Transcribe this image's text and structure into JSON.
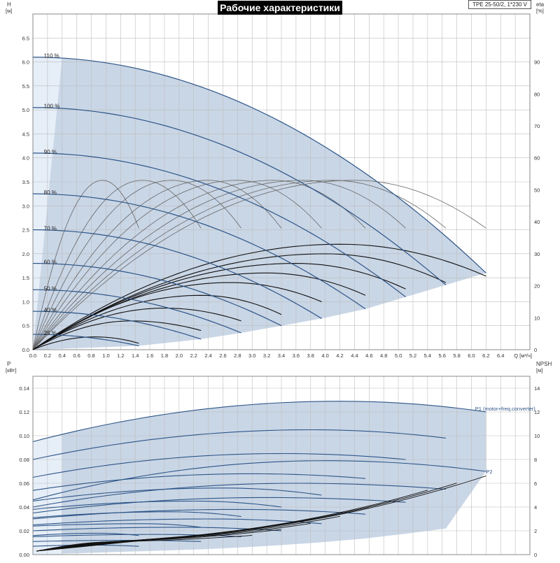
{
  "title": "Рабочие характеристики",
  "model": "TPE 25-50/2, 1*230 V",
  "colors": {
    "band": "#c9d6e6",
    "band_light": "#e6eef8",
    "curve_blue": "#2d5587",
    "curve_black": "#111111",
    "grid": "#bdbdbd"
  },
  "chart_data": [
    {
      "type": "line",
      "panel": "head_efficiency",
      "ylabel_left": "H",
      "ylabel_left_unit": "[м]",
      "ylabel_right": "eta",
      "ylabel_right_unit": "[%]",
      "xlabel": "Q [м³/ч]",
      "xlim": [
        0,
        6.8
      ],
      "ylim_left": [
        0,
        7.0
      ],
      "ylim_right": [
        0,
        105
      ],
      "grid": true,
      "x_ticks": [
        "0.0",
        "0.2",
        "0.4",
        "0.6",
        "0.8",
        "1.0",
        "1.2",
        "1.4",
        "1.6",
        "1.8",
        "2.0",
        "2.2",
        "2.4",
        "2.6",
        "2.8",
        "3.0",
        "3.2",
        "3.4",
        "3.6",
        "3.8",
        "4.0",
        "4.2",
        "4.4",
        "4.6",
        "4.8",
        "5.0",
        "5.2",
        "5.4",
        "5.6",
        "5.8",
        "6.0",
        "6.2",
        "6.4"
      ],
      "y_ticks_left": [
        "0.0",
        "0.5",
        "1.0",
        "1.5",
        "2.0",
        "2.5",
        "3.0",
        "3.5",
        "4.0",
        "4.5",
        "5.0",
        "5.5",
        "6.0",
        "6.5"
      ],
      "y_ticks_right": [
        "0",
        "10",
        "20",
        "30",
        "40",
        "50",
        "60",
        "70",
        "80",
        "90"
      ],
      "speed_labels": [
        "110 %",
        "100 %",
        "90 %",
        "80 %",
        "70 %",
        "60 %",
        "50 %",
        "40 %",
        "25 %"
      ],
      "head_curves": [
        {
          "name": "110 %",
          "qmax": 6.2,
          "h0": 6.1,
          "hend": 1.6
        },
        {
          "name": "100 %",
          "qmax": 5.65,
          "h0": 5.05,
          "hend": 1.35
        },
        {
          "name": "90 %",
          "qmax": 5.1,
          "h0": 4.1,
          "hend": 1.1
        },
        {
          "name": "80 %",
          "qmax": 4.55,
          "h0": 3.25,
          "hend": 0.85
        },
        {
          "name": "70 %",
          "qmax": 3.95,
          "h0": 2.5,
          "hend": 0.65
        },
        {
          "name": "60 %",
          "qmax": 3.4,
          "h0": 1.8,
          "hend": 0.5
        },
        {
          "name": "50 %",
          "qmax": 2.85,
          "h0": 1.25,
          "hend": 0.35
        },
        {
          "name": "40 %",
          "qmax": 2.3,
          "h0": 0.8,
          "hend": 0.22
        },
        {
          "name": "25 %",
          "qmax": 1.45,
          "h0": 0.32,
          "hend": 0.08
        }
      ],
      "efficiency_curves": [
        {
          "qpeak": 0.95,
          "etapeak": 53,
          "qmax": 1.45,
          "etaend": 38
        },
        {
          "qpeak": 1.5,
          "etapeak": 53,
          "qmax": 2.3,
          "etaend": 38
        },
        {
          "qpeak": 1.9,
          "etapeak": 53,
          "qmax": 2.85,
          "etaend": 38
        },
        {
          "qpeak": 2.4,
          "etapeak": 53,
          "qmax": 3.4,
          "etaend": 38
        },
        {
          "qpeak": 2.8,
          "etapeak": 53,
          "qmax": 3.95,
          "etaend": 38
        },
        {
          "qpeak": 3.3,
          "etapeak": 53,
          "qmax": 4.55,
          "etaend": 38
        },
        {
          "qpeak": 3.7,
          "etapeak": 53,
          "qmax": 5.1,
          "etaend": 38
        },
        {
          "qpeak": 4.1,
          "etapeak": 53,
          "qmax": 5.65,
          "etaend": 38
        },
        {
          "qpeak": 4.4,
          "etapeak": 53,
          "qmax": 6.2,
          "etaend": 38
        }
      ],
      "eta_total_curves": [
        {
          "qpeak": 0.85,
          "etapeak": 4,
          "qmax": 1.45,
          "etaend": 2
        },
        {
          "qpeak": 1.35,
          "etapeak": 9,
          "qmax": 2.3,
          "etaend": 6
        },
        {
          "qpeak": 1.8,
          "etapeak": 13,
          "qmax": 2.85,
          "etaend": 9
        },
        {
          "qpeak": 2.3,
          "etapeak": 17,
          "qmax": 3.4,
          "etaend": 11
        },
        {
          "qpeak": 2.7,
          "etapeak": 21,
          "qmax": 3.95,
          "etaend": 15
        },
        {
          "qpeak": 3.2,
          "etapeak": 24,
          "qmax": 4.55,
          "etaend": 17
        },
        {
          "qpeak": 3.6,
          "etapeak": 27,
          "qmax": 5.1,
          "etaend": 19
        },
        {
          "qpeak": 4.0,
          "etapeak": 30,
          "qmax": 5.65,
          "etaend": 21
        },
        {
          "qpeak": 4.2,
          "etapeak": 33,
          "qmax": 6.2,
          "etaend": 23
        }
      ]
    },
    {
      "type": "line",
      "panel": "power_npsh",
      "ylabel_left": "P",
      "ylabel_left_unit": "[кВт]",
      "ylabel_right": "NPSH",
      "ylabel_right_unit": "[м]",
      "xlim": [
        0,
        6.8
      ],
      "ylim_left": [
        0,
        0.15
      ],
      "ylim_right": [
        0,
        15
      ],
      "grid": true,
      "y_ticks_left": [
        "0.00",
        "0.02",
        "0.04",
        "0.06",
        "0.08",
        "0.10",
        "0.12",
        "0.14"
      ],
      "y_ticks_right": [
        "0",
        "2",
        "4",
        "6",
        "8",
        "10",
        "12",
        "14"
      ],
      "series_labels": [
        "P1 (motor+freq.converter)",
        "P2"
      ],
      "p1_curves": [
        {
          "qmax": 6.2,
          "p0": 0.095,
          "ppeak": 0.129,
          "qpeak": 4.2,
          "pend": 0.12
        },
        {
          "qmax": 5.65,
          "p0": 0.08,
          "ppeak": 0.105,
          "qpeak": 3.8,
          "pend": 0.098
        },
        {
          "qmax": 5.1,
          "p0": 0.065,
          "ppeak": 0.085,
          "qpeak": 3.4,
          "pend": 0.08
        },
        {
          "qmax": 4.55,
          "p0": 0.054,
          "ppeak": 0.068,
          "qpeak": 3.0,
          "pend": 0.064
        },
        {
          "qmax": 3.95,
          "p0": 0.045,
          "ppeak": 0.056,
          "qpeak": 2.6,
          "pend": 0.05
        },
        {
          "qmax": 3.4,
          "p0": 0.038,
          "ppeak": 0.045,
          "qpeak": 2.2,
          "pend": 0.04
        },
        {
          "qmax": 2.85,
          "p0": 0.031,
          "ppeak": 0.036,
          "qpeak": 1.9,
          "pend": 0.032
        },
        {
          "qmax": 2.3,
          "p0": 0.024,
          "ppeak": 0.026,
          "qpeak": 1.5,
          "pend": 0.023
        },
        {
          "qmax": 1.45,
          "p0": 0.016,
          "ppeak": 0.018,
          "qpeak": 0.9,
          "pend": 0.016
        }
      ],
      "p2_curves": [
        {
          "qmax": 6.2,
          "p0": 0.046,
          "ppeak": 0.079,
          "qpeak": 4.0,
          "pend": 0.07
        },
        {
          "qmax": 5.65,
          "p0": 0.04,
          "ppeak": 0.06,
          "qpeak": 3.6,
          "pend": 0.055
        },
        {
          "qmax": 5.1,
          "p0": 0.035,
          "ppeak": 0.048,
          "qpeak": 3.2,
          "pend": 0.044
        },
        {
          "qmax": 4.55,
          "p0": 0.03,
          "ppeak": 0.038,
          "qpeak": 2.8,
          "pend": 0.034
        },
        {
          "qmax": 3.95,
          "p0": 0.025,
          "ppeak": 0.03,
          "qpeak": 2.4,
          "pend": 0.026
        },
        {
          "qmax": 3.4,
          "p0": 0.02,
          "ppeak": 0.023,
          "qpeak": 2.0,
          "pend": 0.02
        },
        {
          "qmax": 2.85,
          "p0": 0.015,
          "ppeak": 0.017,
          "qpeak": 1.7,
          "pend": 0.015
        },
        {
          "qmax": 2.3,
          "p0": 0.011,
          "ppeak": 0.012,
          "qpeak": 1.3,
          "pend": 0.011
        },
        {
          "qmax": 1.45,
          "p0": 0.007,
          "ppeak": 0.008,
          "qpeak": 0.8,
          "pend": 0.007
        }
      ],
      "npsh_curves": [
        {
          "qmax": 6.2,
          "nend": 6.6
        },
        {
          "qmax": 5.8,
          "nend": 6.0
        },
        {
          "qmax": 5.4,
          "nend": 5.4
        },
        {
          "qmax": 5.0,
          "nend": 4.6
        },
        {
          "qmax": 4.6,
          "nend": 3.9
        },
        {
          "qmax": 4.2,
          "nend": 3.2
        },
        {
          "qmax": 3.8,
          "nend": 2.6
        },
        {
          "qmax": 3.4,
          "nend": 2.1
        },
        {
          "qmax": 3.0,
          "nend": 1.6
        }
      ]
    }
  ]
}
